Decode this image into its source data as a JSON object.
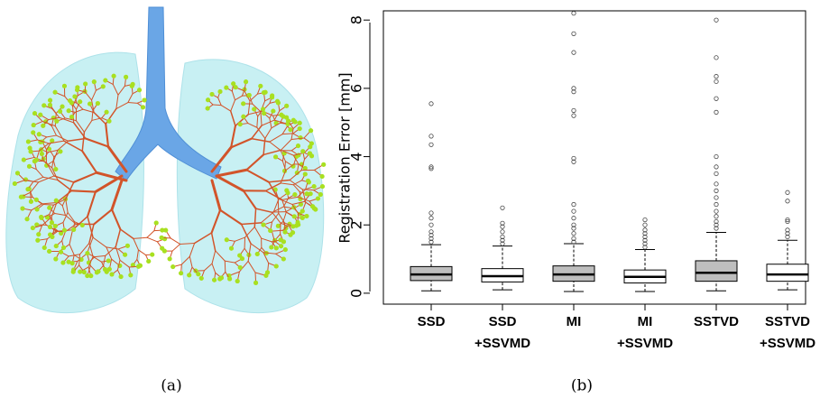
{
  "panel_labels": [
    "(a)",
    "(b)"
  ],
  "chart_data": {
    "type": "box",
    "ylabel": "Registration Error [mm]",
    "categories": [
      [
        "SSD"
      ],
      [
        "SSD",
        "+SSVMD"
      ],
      [
        "MI"
      ],
      [
        "MI",
        "+SSVMD"
      ],
      [
        "SSTVD"
      ],
      [
        "SSTVD",
        "+SSVMD"
      ]
    ],
    "boxes": [
      {
        "low": 0.07,
        "q1": 0.37,
        "median": 0.55,
        "q3": 0.78,
        "high": 1.42,
        "color": "#bebebe",
        "outliers": [
          1.5,
          1.6,
          1.7,
          1.8,
          2.0,
          2.2,
          2.35,
          3.65,
          3.7,
          4.35,
          4.6,
          5.55
        ]
      },
      {
        "low": 0.1,
        "q1": 0.33,
        "median": 0.5,
        "q3": 0.72,
        "high": 1.38,
        "color": "#ffffff",
        "outliers": [
          1.45,
          1.55,
          1.65,
          1.8,
          1.95,
          2.05,
          2.5
        ]
      },
      {
        "low": 0.05,
        "q1": 0.35,
        "median": 0.55,
        "q3": 0.8,
        "high": 1.45,
        "color": "#bebebe",
        "outliers": [
          1.5,
          1.6,
          1.75,
          1.9,
          2.0,
          2.2,
          2.4,
          2.6,
          3.85,
          3.95,
          5.2,
          5.35,
          5.9,
          6.0,
          7.05,
          7.6,
          8.2
        ]
      },
      {
        "low": 0.05,
        "q1": 0.3,
        "median": 0.48,
        "q3": 0.68,
        "high": 1.28,
        "color": "#ffffff",
        "outliers": [
          1.35,
          1.45,
          1.55,
          1.65,
          1.75,
          1.85,
          2.0,
          2.15
        ]
      },
      {
        "low": 0.07,
        "q1": 0.35,
        "median": 0.6,
        "q3": 0.95,
        "high": 1.78,
        "color": "#bebebe",
        "outliers": [
          1.9,
          2.0,
          2.1,
          2.25,
          2.4,
          2.6,
          2.8,
          3.0,
          3.2,
          3.5,
          3.7,
          4.0,
          5.3,
          5.7,
          6.2,
          6.35,
          6.9,
          8.0
        ]
      },
      {
        "low": 0.1,
        "q1": 0.35,
        "median": 0.55,
        "q3": 0.85,
        "high": 1.55,
        "color": "#ffffff",
        "outliers": [
          1.65,
          1.75,
          1.85,
          2.1,
          2.15,
          2.7,
          2.95
        ]
      }
    ],
    "ylim": [
      -0.32,
      8.27
    ],
    "yticks": [
      0,
      2,
      4,
      6,
      8
    ]
  }
}
